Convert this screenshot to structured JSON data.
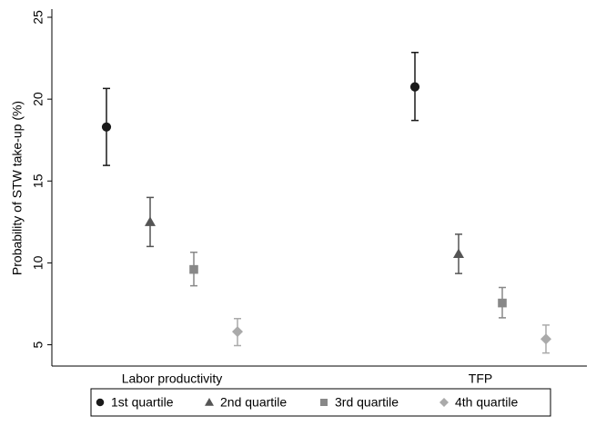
{
  "chart_data": {
    "type": "errorbar",
    "y_label": "Probability of STW take-up (%)",
    "categories": [
      "Labor productivity",
      "TFP"
    ],
    "ylim": [
      3.7,
      25.5
    ],
    "yticks": [
      5,
      10,
      15,
      20,
      25
    ],
    "legend": "bottom",
    "series": [
      {
        "name": "1st quartile",
        "color": "#1a1a1a",
        "marker": "circle",
        "values": [
          18.3,
          20.75
        ],
        "lower": [
          15.95,
          18.7
        ],
        "upper": [
          20.65,
          22.85
        ]
      },
      {
        "name": "2nd quartile",
        "color": "#555555",
        "marker": "triangle",
        "values": [
          12.5,
          10.55
        ],
        "lower": [
          11.0,
          9.35
        ],
        "upper": [
          14.0,
          11.75
        ]
      },
      {
        "name": "3rd quartile",
        "color": "#888888",
        "marker": "square",
        "values": [
          9.6,
          7.55
        ],
        "lower": [
          8.6,
          6.65
        ],
        "upper": [
          10.65,
          8.5
        ]
      },
      {
        "name": "4th quartile",
        "color": "#aaaaaa",
        "marker": "diamond",
        "values": [
          5.8,
          5.35
        ],
        "lower": [
          4.95,
          4.5
        ],
        "upper": [
          6.6,
          6.2
        ]
      }
    ]
  }
}
